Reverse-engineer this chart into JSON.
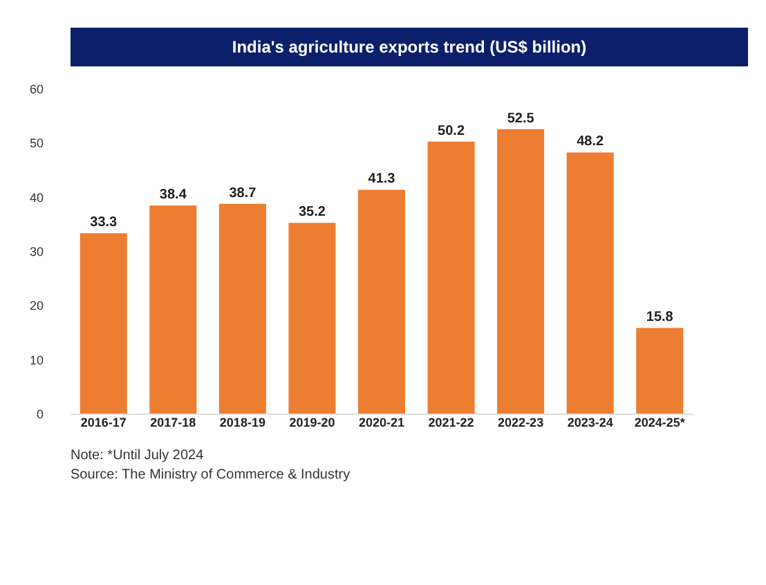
{
  "chart_data": {
    "type": "bar",
    "title": "India's agriculture exports trend (US$ billion)",
    "categories": [
      "2016-17",
      "2017-18",
      "2018-19",
      "2019-20",
      "2020-21",
      "2021-22",
      "2022-23",
      "2023-24",
      "2024-25*"
    ],
    "values": [
      33.3,
      38.4,
      38.7,
      35.2,
      41.3,
      50.2,
      52.5,
      48.2,
      15.8
    ],
    "color": "#ed7d31",
    "ylim": [
      0,
      60
    ],
    "yticks": [
      0,
      10,
      20,
      30,
      40,
      50,
      60
    ],
    "grid": false,
    "data_labels": true,
    "annotations": [
      "Note: *Until July 2024",
      "Source: The Ministry of Commerce & Industry"
    ]
  }
}
